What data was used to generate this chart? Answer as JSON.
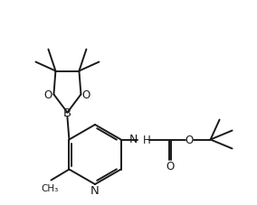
{
  "bg_color": "#ffffff",
  "line_color": "#1a1a1a",
  "line_width": 1.4,
  "font_size": 8.5,
  "figsize": [
    2.84,
    2.28
  ],
  "dpi": 100,
  "xlim": [
    0,
    284
  ],
  "ylim": [
    0,
    228
  ]
}
